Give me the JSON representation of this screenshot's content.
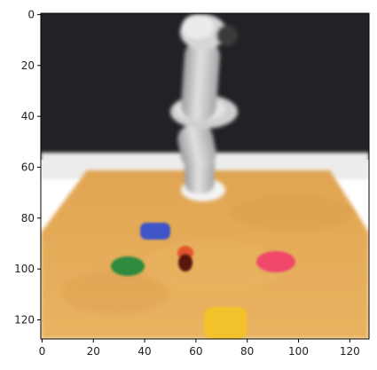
{
  "figure": {
    "x_ticks": [
      "0",
      "20",
      "40",
      "60",
      "80",
      "100",
      "120"
    ],
    "y_ticks": [
      "0",
      "20",
      "40",
      "60",
      "80",
      "100",
      "120"
    ],
    "x_tick_values": [
      0,
      20,
      40,
      60,
      80,
      100,
      120
    ],
    "y_tick_values": [
      0,
      20,
      40,
      60,
      80,
      100,
      120
    ],
    "image_extent": {
      "xmin": -0.5,
      "xmax": 127.5,
      "ymin": -0.5,
      "ymax": 127.5
    }
  },
  "scene": {
    "subject": "robot-arm",
    "objects": [
      {
        "name": "blue-block",
        "color": "#3d55c7"
      },
      {
        "name": "green-block",
        "color": "#2f8a3c"
      },
      {
        "name": "red-cylinder",
        "color": "#6b1a12"
      },
      {
        "name": "pink-block",
        "color": "#f0466b"
      },
      {
        "name": "yellow-block",
        "color": "#f3c22c"
      }
    ],
    "colors": {
      "background-wall": "#1f2125",
      "table-edge": "#e9e9e9",
      "table-surface": "#e2a854",
      "robot-arm": "#d0d0d0"
    }
  }
}
